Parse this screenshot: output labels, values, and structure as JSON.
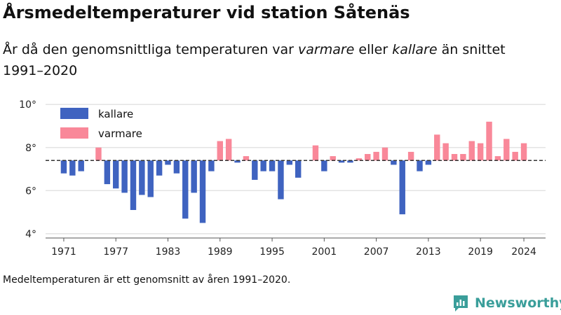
{
  "title": "Årsmedeltemperaturer vid station Såtenäs",
  "subtitle": {
    "part1": "År då den genomsnittliga temperaturen var ",
    "warm_word": "varmare",
    "part2": " eller ",
    "cold_word": "kallare",
    "part3": " än snittet 1991–2020"
  },
  "caption": "Medeltemperaturen är ett genomsnitt av åren 1991–2020.",
  "logo": {
    "text": "Newsworthy",
    "icon": "bar-chart-logo-icon",
    "color": "#3a9e9a"
  },
  "chart_data": {
    "type": "bar",
    "baseline": 7.4,
    "ylim": [
      3.8,
      10.3
    ],
    "yticks": [
      4,
      6,
      8,
      10
    ],
    "ytick_labels": [
      "4°",
      "6°",
      "8°",
      "10°"
    ],
    "xticks": [
      1971,
      1977,
      1983,
      1989,
      1995,
      2001,
      2007,
      2013,
      2019,
      2024
    ],
    "xlim": [
      1968.5,
      2026.5
    ],
    "grid": true,
    "legend_position": "top-left",
    "colors": {
      "kallare": "#3f63c0",
      "varmare": "#f98899"
    },
    "series": [
      {
        "name": "kallare",
        "color": "#3f63c0"
      },
      {
        "name": "varmare",
        "color": "#f98899"
      }
    ],
    "x": [
      1971,
      1972,
      1973,
      1974,
      1975,
      1976,
      1977,
      1978,
      1979,
      1980,
      1981,
      1982,
      1983,
      1984,
      1985,
      1986,
      1987,
      1988,
      1989,
      1990,
      1991,
      1992,
      1993,
      1994,
      1995,
      1996,
      1997,
      1998,
      1999,
      2000,
      2001,
      2002,
      2003,
      2004,
      2005,
      2006,
      2007,
      2008,
      2009,
      2010,
      2011,
      2012,
      2013,
      2014,
      2015,
      2016,
      2017,
      2018,
      2019,
      2020,
      2021,
      2022,
      2023,
      2024
    ],
    "values": [
      6.8,
      6.7,
      6.9,
      7.4,
      8.0,
      6.3,
      6.1,
      5.9,
      5.1,
      5.8,
      5.7,
      6.7,
      7.2,
      6.8,
      4.7,
      5.9,
      4.5,
      6.9,
      8.3,
      8.4,
      7.3,
      7.6,
      6.5,
      6.9,
      6.9,
      5.6,
      7.2,
      6.6,
      7.4,
      8.1,
      6.9,
      7.6,
      7.3,
      7.3,
      7.5,
      7.7,
      7.8,
      8.0,
      7.2,
      4.9,
      7.8,
      6.9,
      7.2,
      8.6,
      8.2,
      7.7,
      7.7,
      8.3,
      8.2,
      9.2,
      7.6,
      8.4,
      7.8,
      8.2
    ]
  }
}
